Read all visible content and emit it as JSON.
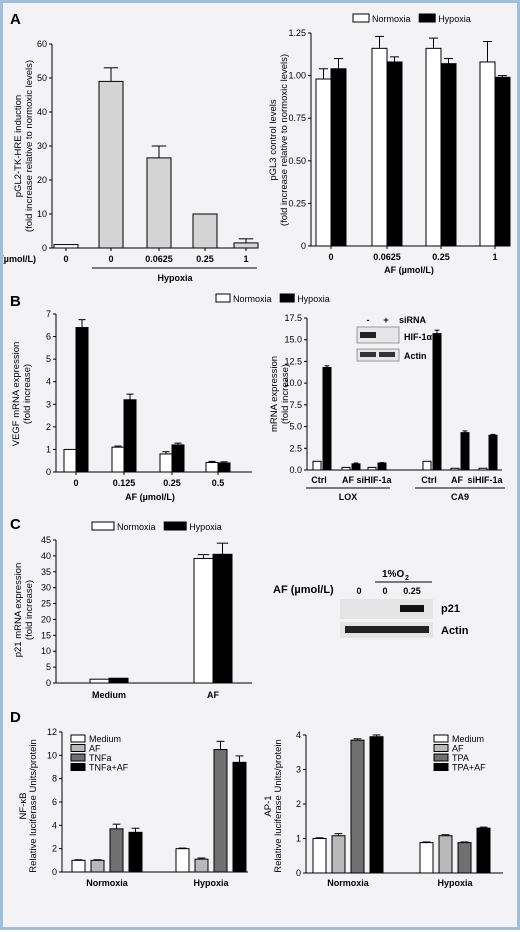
{
  "figure": {
    "panels": [
      {
        "letter": "A"
      },
      {
        "letter": "B"
      },
      {
        "letter": "C"
      },
      {
        "letter": "D"
      }
    ]
  },
  "chart_data": [
    {
      "id": "A1",
      "type": "bar",
      "categories": [
        "0",
        "0",
        "0.0625",
        "0.25",
        "1"
      ],
      "xlabel": "AF (µmol/L)",
      "group_label": "Hypoxia",
      "ylabel_lines": [
        "pGL2-TK-HRE induction",
        "(fold increase relative to normoxic levels)"
      ],
      "ylim": [
        0,
        60
      ],
      "yticks": [
        0,
        10,
        20,
        30,
        40,
        50,
        60
      ],
      "series": [
        {
          "values": [
            1,
            49,
            26.5,
            10,
            1.5
          ],
          "errors": [
            0,
            4,
            3.5,
            0,
            1.2
          ],
          "fills": [
            "#ffffff",
            "#d4d4d4",
            "#d4d4d4",
            "#d4d4d4",
            "#d4d4d4"
          ]
        }
      ]
    },
    {
      "id": "A2",
      "type": "bar",
      "categories": [
        "0",
        "0.0625",
        "0.25",
        "1"
      ],
      "xlabel": "AF (µmol/L)",
      "ylabel_lines": [
        "pGL3 control levels",
        "(fold increase relative to normoxic levels)"
      ],
      "ylim": [
        0,
        1.25
      ],
      "yticks": [
        "0",
        "0.25",
        "0.50",
        "0.75",
        "1.00",
        "1.25"
      ],
      "legend": "top",
      "series": [
        {
          "name": "Normoxia",
          "color": "#ffffff",
          "values": [
            0.98,
            1.16,
            1.16,
            1.08
          ],
          "errors": [
            0.06,
            0.07,
            0.06,
            0.12
          ]
        },
        {
          "name": "Hypoxia",
          "color": "#000000",
          "values": [
            1.04,
            1.08,
            1.07,
            0.99
          ],
          "errors": [
            0.06,
            0.03,
            0.03,
            0.01
          ]
        }
      ]
    },
    {
      "id": "B1",
      "type": "bar",
      "categories": [
        "0",
        "0.125",
        "0.25",
        "0.5"
      ],
      "xlabel": "AF (µmol/L)",
      "ylabel_lines": [
        "VEGF mRNA expression",
        "(fold increase)"
      ],
      "ylim": [
        0,
        7
      ],
      "yticks": [
        0,
        1,
        2,
        3,
        4,
        5,
        6,
        7
      ],
      "legend": "top",
      "series": [
        {
          "name": "Normoxia",
          "color": "#ffffff",
          "values": [
            1,
            1.1,
            0.8,
            0.42
          ],
          "errors": [
            0,
            0.05,
            0.1,
            0.05
          ]
        },
        {
          "name": "Hypoxia",
          "color": "#000000",
          "values": [
            6.4,
            3.2,
            1.2,
            0.4
          ],
          "errors": [
            0.35,
            0.25,
            0.08,
            0.05
          ]
        }
      ]
    },
    {
      "id": "B2",
      "type": "bar",
      "categories": [
        "Ctrl",
        "AF",
        "siHIF-1a",
        "Ctrl",
        "AF",
        "siHIF-1a"
      ],
      "groups": [
        "LOX",
        "CA9"
      ],
      "ylabel_lines": [
        "mRNA expression",
        "(fold increase)"
      ],
      "ylim": [
        0,
        17.5
      ],
      "yticks": [
        "0.0",
        "2.5",
        "5.0",
        "7.5",
        "10.0",
        "12.5",
        "15.0",
        "17.5"
      ],
      "series": [
        {
          "name": "Normoxia",
          "color": "#ffffff",
          "values": [
            1,
            0.3,
            0.3,
            1,
            0.2,
            0.2
          ],
          "errors": [
            0,
            0,
            0,
            0,
            0,
            0
          ]
        },
        {
          "name": "Hypoxia",
          "color": "#000000",
          "values": [
            11.8,
            0.7,
            0.8,
            15.7,
            4.3,
            4.0
          ],
          "errors": [
            0.2,
            0.1,
            0.05,
            0.4,
            0.2,
            0.1
          ]
        }
      ],
      "inset": {
        "lanes": [
          "-",
          "+"
        ],
        "lane_header": "siRNA",
        "rows": [
          "HIF-1α",
          "Actin"
        ]
      }
    },
    {
      "id": "C1",
      "type": "bar",
      "categories": [
        "Medium",
        "AF"
      ],
      "ylabel_lines": [
        "p21 mRNA expression",
        "(fold increase)"
      ],
      "ylim": [
        0,
        45
      ],
      "yticks": [
        0,
        5,
        10,
        15,
        20,
        25,
        30,
        35,
        40,
        45
      ],
      "legend": "top",
      "series": [
        {
          "name": "Normoxia",
          "color": "#ffffff",
          "values": [
            1.2,
            39.2
          ],
          "errors": [
            0,
            1.2
          ]
        },
        {
          "name": "Hypoxia",
          "color": "#000000",
          "values": [
            1.5,
            40.5
          ],
          "errors": [
            0,
            3.5
          ]
        }
      ],
      "blot": {
        "label": "AF (µmol/L)",
        "condition": "1%O",
        "condition_sub": "2",
        "lanes": [
          "0",
          "0",
          "0.25"
        ],
        "rows": [
          "p21",
          "Actin"
        ]
      }
    },
    {
      "id": "D1",
      "type": "bar",
      "categories": [
        "Normoxia",
        "Hypoxia"
      ],
      "ylabel_lines": [
        "NF-κB",
        "Relative luciferase Units/protein"
      ],
      "ylim": [
        0,
        12
      ],
      "yticks": [
        0,
        2,
        4,
        6,
        8,
        10,
        12
      ],
      "legend": "top-left",
      "series": [
        {
          "name": "Medium",
          "color": "#ffffff",
          "values": [
            1.0,
            2.0
          ],
          "errors": [
            0.05,
            0.05
          ]
        },
        {
          "name": "AF",
          "color": "#b9b9b9",
          "values": [
            1.0,
            1.1
          ],
          "errors": [
            0.05,
            0.1
          ]
        },
        {
          "name": "TNFa",
          "color": "#707070",
          "values": [
            3.7,
            10.5
          ],
          "errors": [
            0.4,
            0.7
          ]
        },
        {
          "name": "TNFa+AF",
          "color": "#000000",
          "values": [
            3.4,
            9.4
          ],
          "errors": [
            0.35,
            0.55
          ]
        }
      ]
    },
    {
      "id": "D2",
      "type": "bar",
      "categories": [
        "Normoxia",
        "Hypoxia"
      ],
      "ylabel_lines": [
        "AP-1",
        "Relative luciferase Units/protein"
      ],
      "ylim": [
        0,
        4
      ],
      "yticks": [
        0,
        1,
        2,
        3,
        4
      ],
      "legend": "top-right",
      "series": [
        {
          "name": "Medium",
          "color": "#ffffff",
          "values": [
            1.0,
            0.88
          ],
          "errors": [
            0.02,
            0.02
          ]
        },
        {
          "name": "AF",
          "color": "#b9b9b9",
          "values": [
            1.08,
            1.08
          ],
          "errors": [
            0.06,
            0.03
          ]
        },
        {
          "name": "TPA",
          "color": "#707070",
          "values": [
            3.85,
            0.88
          ],
          "errors": [
            0.04,
            0.02
          ]
        },
        {
          "name": "TPA+AF",
          "color": "#000000",
          "values": [
            3.95,
            1.3
          ],
          "errors": [
            0.05,
            0.03
          ]
        }
      ]
    }
  ]
}
